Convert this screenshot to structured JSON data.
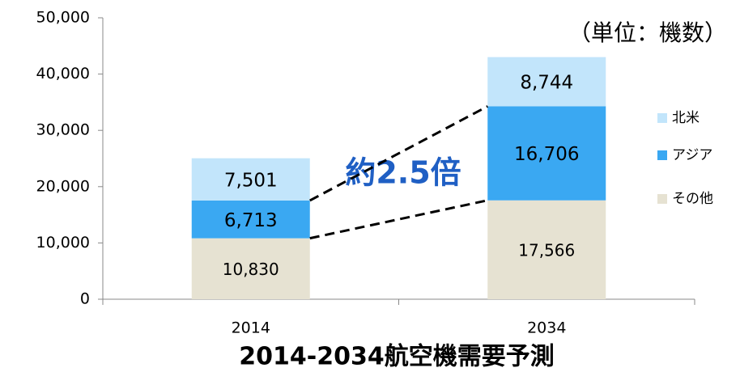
{
  "chart_data": {
    "type": "stacked_bar",
    "title": "2014-2034航空機需要予測",
    "annotations": [
      "約2.5倍",
      "（単位：機数）"
    ],
    "categories": [
      "2014",
      "2034"
    ],
    "series": [
      {
        "name": "その他",
        "color": "#e6e2d2",
        "values": [
          10830,
          17566
        ],
        "value_labels": [
          "10,830",
          "17,566"
        ]
      },
      {
        "name": "アジア",
        "color": "#3aa8f2",
        "values": [
          6713,
          16706
        ],
        "value_labels": [
          "6,713",
          "16,706"
        ]
      },
      {
        "name": "北米",
        "color": "#c2e5fb",
        "values": [
          7501,
          8744
        ],
        "value_labels": [
          "7,501",
          "8,744"
        ]
      }
    ],
    "ylim": [
      0,
      50000
    ],
    "yticks": [
      0,
      {
        "value": 10000,
        "label": "10,000"
      },
      {
        "value": 20000,
        "label": "20,000"
      },
      {
        "value": 30000,
        "label": "30,000"
      },
      {
        "value": 40000,
        "label": "40,000"
      },
      {
        "value": 50000,
        "label": "50,000"
      }
    ],
    "legend": "right"
  }
}
